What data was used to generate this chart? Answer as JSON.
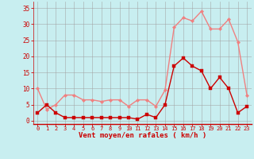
{
  "hours": [
    0,
    1,
    2,
    3,
    4,
    5,
    6,
    7,
    8,
    9,
    10,
    11,
    12,
    13,
    14,
    15,
    16,
    17,
    18,
    19,
    20,
    21,
    22,
    23
  ],
  "wind_avg": [
    2.5,
    5.0,
    2.5,
    1.0,
    1.0,
    1.0,
    1.0,
    1.0,
    1.0,
    1.0,
    1.0,
    0.5,
    2.0,
    1.0,
    5.0,
    17.0,
    19.5,
    17.0,
    15.5,
    10.0,
    13.5,
    10.0,
    2.5,
    4.5
  ],
  "wind_gust": [
    10.0,
    3.5,
    5.0,
    8.0,
    8.0,
    6.5,
    6.5,
    6.0,
    6.5,
    6.5,
    4.5,
    6.5,
    6.5,
    4.5,
    9.5,
    29.0,
    32.0,
    31.0,
    34.0,
    28.5,
    28.5,
    31.5,
    24.5,
    8.0
  ],
  "color_avg": "#cc0000",
  "color_gust": "#f08080",
  "bg_color": "#c8eef0",
  "grid_color": "#a0a0a0",
  "xlabel": "Vent moyen/en rafales ( km/h )",
  "ylabel_ticks": [
    0,
    5,
    10,
    15,
    20,
    25,
    30,
    35
  ],
  "xlim": [
    -0.5,
    23.5
  ],
  "ylim": [
    -1,
    37
  ]
}
